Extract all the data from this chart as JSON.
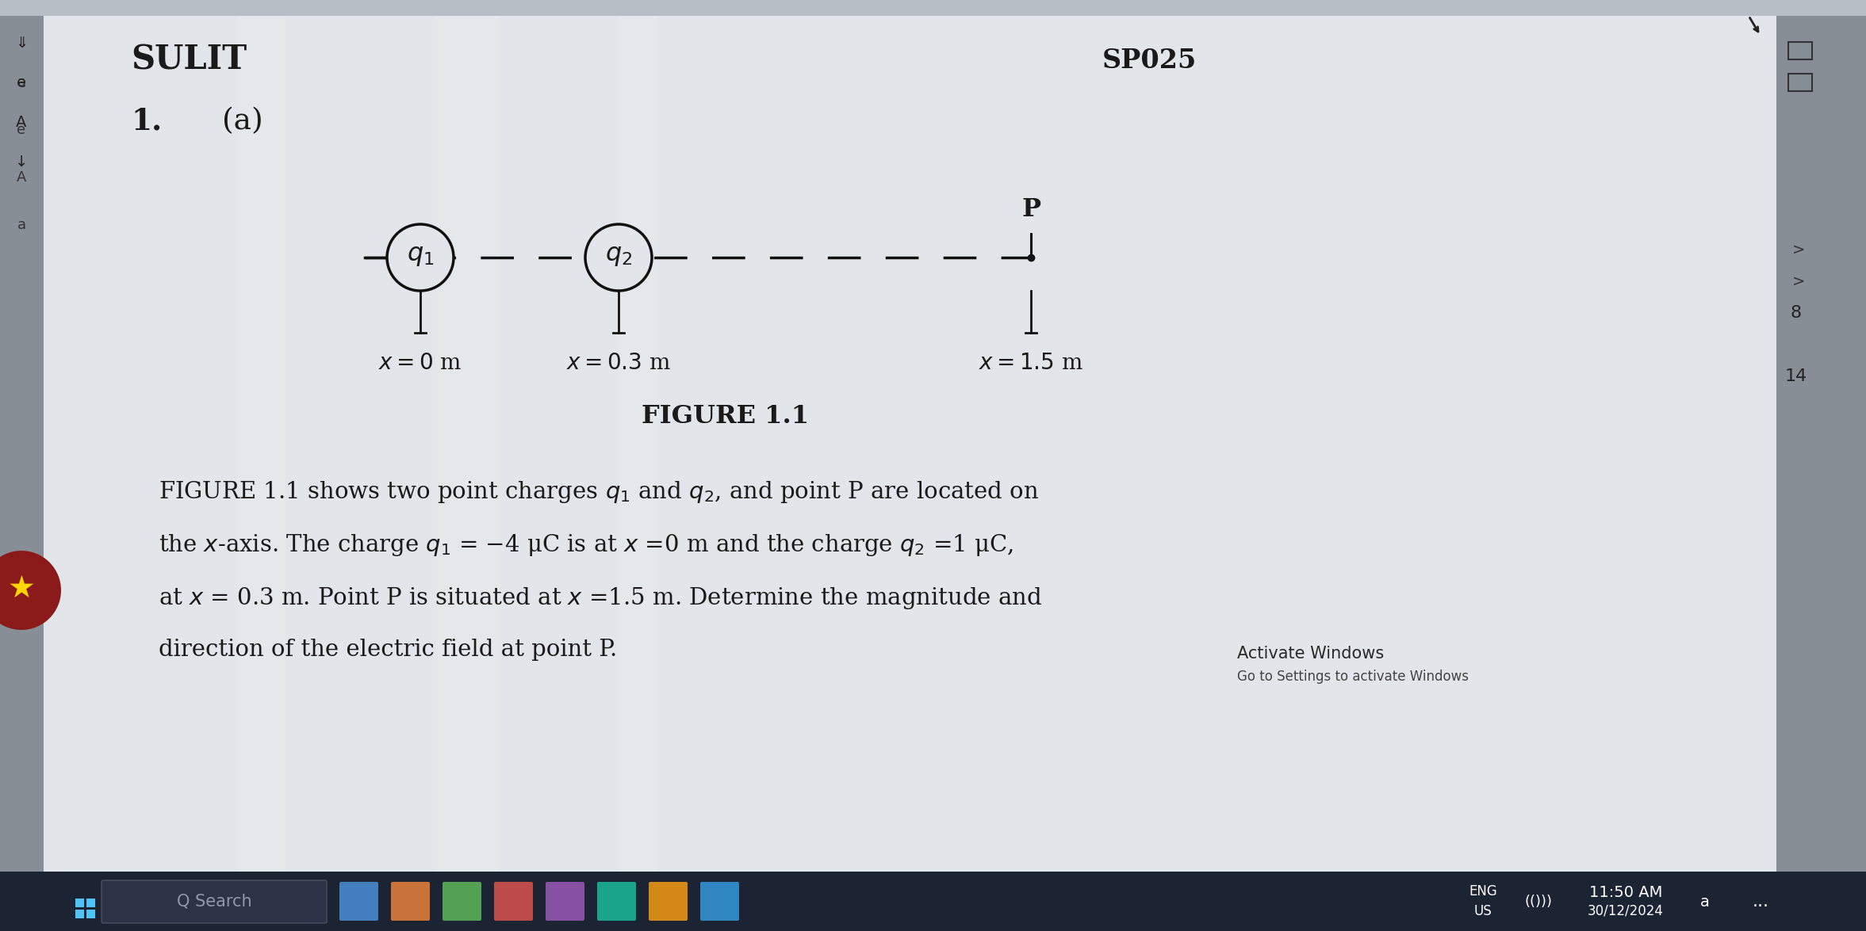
{
  "bg_color": "#b8bec6",
  "paper_color": "#e2e5e9",
  "title_sulit": "SULIT",
  "title_sp": "SP025",
  "question_number": "1.",
  "question_part": "(a)",
  "figure_label": "FIGURE 1.1",
  "text_color": "#1a1a1a",
  "dashed_color": "#111111",
  "circle_color": "#111111",
  "taskbar_color": "#1c2333",
  "line1": "FIGURE 1.1 shows two point charges $q_1$ and $q_2$, and point P are located on",
  "line2": "the $x$-axis. The charge $q_1$ = −4 μC is at $x$ =0 m and the charge $q_2$ =1 μC,",
  "line3": "at $x$ = 0.3 m. Point P is situated at $x$ =1.5 m. Determine the magnitude and",
  "line4": "direction of the electric field at point P.",
  "activate_windows": "Activate Windows",
  "go_to_settings": "Go to Settings to activate Windows",
  "time_text": "11:50 AM",
  "date_text": "30/12/2024",
  "eng_text": "ENG\nUS",
  "search_text": "Q Search",
  "page_num1": "8",
  "page_num2": "14"
}
